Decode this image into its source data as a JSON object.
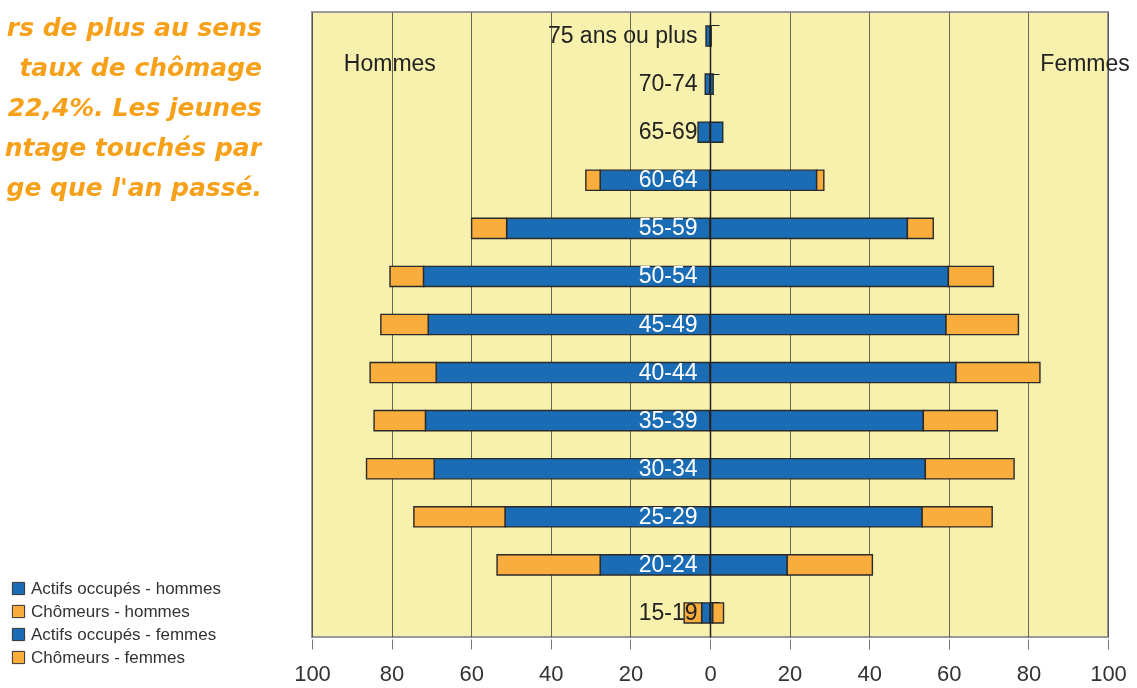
{
  "chart_data": {
    "type": "bar",
    "orientation": "horizontal",
    "stacked": true,
    "categories": [
      "75 ans ou plus",
      "70-74",
      "65-69",
      "60-64",
      "55-59",
      "50-54",
      "45-49",
      "40-44",
      "35-39",
      "30-34",
      "25-29",
      "20-24",
      "15-19"
    ],
    "series": [
      {
        "name": "Actifs occupés - hommes",
        "color": "#1a6db5",
        "values": [
          -1.0,
          -1.2,
          -3.0,
          -27.6,
          -51.1,
          -72.0,
          -70.8,
          -68.8,
          -71.5,
          -69.3,
          -51.5,
          -27.6,
          -2.1
        ]
      },
      {
        "name": "Chômeurs - hommes",
        "color": "#f9ad3c",
        "values": [
          null,
          null,
          null,
          -3.6,
          -8.8,
          -8.4,
          -11.9,
          -16.6,
          -12.9,
          -17.0,
          -22.9,
          -25.9,
          -4.4
        ]
      },
      {
        "name": "Actifs occupés - femmes",
        "color": "#1a6db5",
        "values": [
          0.3,
          0.8,
          3.2,
          26.8,
          49.6,
          59.9,
          59.3,
          61.8,
          53.6,
          54.1,
          53.3,
          19.4,
          0.7
        ]
      },
      {
        "name": "Chômeurs - femmes",
        "color": "#f9ad3c",
        "values": [
          null,
          null,
          null,
          1.8,
          6.5,
          11.3,
          18.2,
          21.1,
          18.6,
          22.3,
          17.6,
          21.4,
          2.7
        ]
      }
    ],
    "xlim": [
      -100,
      100
    ],
    "xticks": [
      {
        "value": -100,
        "label": "100"
      },
      {
        "value": -80,
        "label": "80"
      },
      {
        "value": -60,
        "label": "60"
      },
      {
        "value": -40,
        "label": "40"
      },
      {
        "value": -20,
        "label": "20"
      },
      0,
      20,
      40,
      60,
      80,
      100
    ],
    "grid": "x",
    "legend": "bottom left",
    "annotations": [
      "rs de plus au sens\ntaux de chômage\n22,4%. Les jeunes\nntage touchés par\nge que l'an passé.",
      "Hommes",
      "Femmes"
    ]
  }
}
